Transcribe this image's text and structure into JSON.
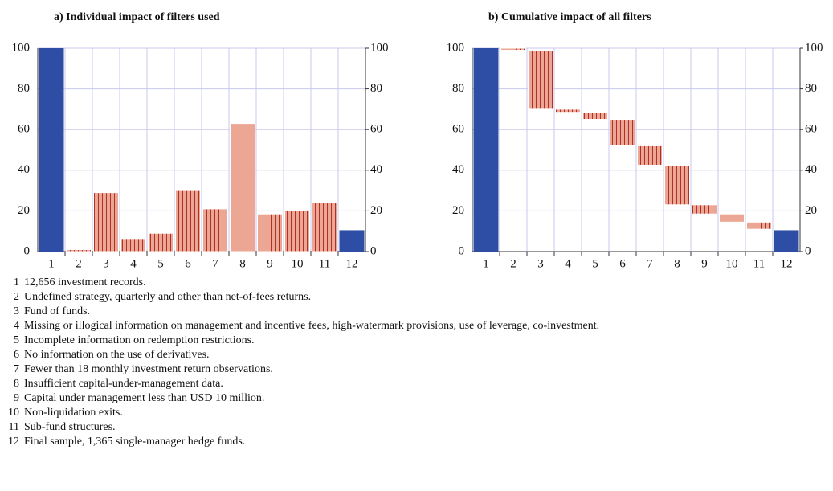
{
  "chart_data": [
    {
      "type": "bar",
      "title": "a) Individual impact of filters used",
      "categories": [
        "1",
        "2",
        "3",
        "4",
        "5",
        "6",
        "7",
        "8",
        "9",
        "10",
        "11",
        "12"
      ],
      "values": [
        100,
        1,
        29,
        6,
        9,
        30,
        21,
        63,
        18.5,
        20,
        24,
        10.5
      ],
      "color": "#2e4ea6",
      "filter_color": "#eba793",
      "line_color": "#b0302a",
      "ylim": [
        0,
        100
      ],
      "yticks": [
        0,
        20,
        40,
        60,
        80,
        100
      ],
      "y2lim": [
        0,
        100
      ],
      "y2ticks": [
        0,
        20,
        40,
        60,
        80,
        100
      ],
      "grid": true
    },
    {
      "type": "waterfall",
      "title": "b) Cumulative impact of all filters",
      "categories": [
        "1",
        "2",
        "3",
        "4",
        "5",
        "6",
        "7",
        "8",
        "9",
        "10",
        "11",
        "12"
      ],
      "values": [
        100,
        1,
        29,
        1.5,
        3.5,
        13,
        9.5,
        19.5,
        4.5,
        4,
        3.5,
        10.5
      ],
      "color": "#2e4ea6",
      "filter_color": "#eba793",
      "line_color": "#b0302a",
      "ylim": [
        0,
        100
      ],
      "yticks": [
        0,
        20,
        40,
        60,
        80,
        100
      ],
      "y2lim": [
        0,
        100
      ],
      "y2ticks": [
        0,
        20,
        40,
        60,
        80,
        100
      ],
      "grid": true
    }
  ],
  "notes": [
    {
      "number": "1",
      "text": "12,656 investment records."
    },
    {
      "number": "2",
      "text": "Undefined strategy, quarterly and other than net-of-fees returns."
    },
    {
      "number": "3",
      "text": "Fund of funds."
    },
    {
      "number": "4",
      "text": "Missing or illogical information on management and incentive fees, high-watermark provisions, use of leverage, co-investment."
    },
    {
      "number": "5",
      "text": "Incomplete information on redemption restrictions."
    },
    {
      "number": "6",
      "text": "No information on the use of derivatives."
    },
    {
      "number": "7",
      "text": "Fewer than 18 monthly investment return observations."
    },
    {
      "number": "8",
      "text": "Insufficient capital-under-management data."
    },
    {
      "number": "9",
      "text": "Capital under management less than USD 10 million."
    },
    {
      "number": "10",
      "text": "Non-liquidation exits."
    },
    {
      "number": "11",
      "text": "Sub-fund structures."
    },
    {
      "number": "12",
      "text": "Final sample, 1,365 single-manager hedge funds."
    }
  ]
}
